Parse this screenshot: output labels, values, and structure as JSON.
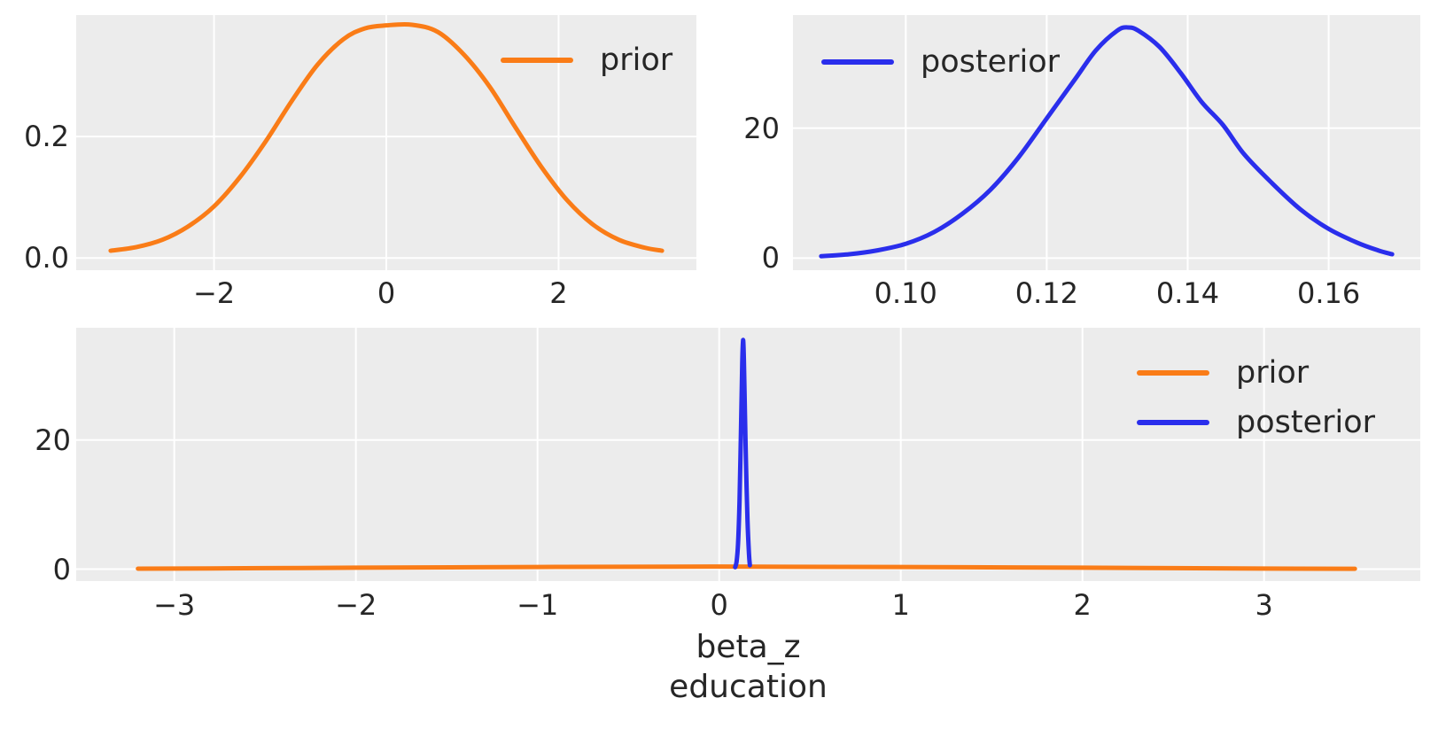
{
  "figure": {
    "background": "#ffffff",
    "plot_background": "#ececec",
    "grid_color": "#ffffff",
    "text_color": "#262626"
  },
  "colors": {
    "prior": "#fa7c17",
    "posterior": "#2a2eec"
  },
  "chart_data": [
    {
      "id": "prior-marginal",
      "type": "line",
      "position": "top-left",
      "xlim": [
        -3.6,
        3.6
      ],
      "ylim": [
        -0.02,
        0.4
      ],
      "grid": true,
      "xticks": [
        {
          "value": -2,
          "label": "−2"
        },
        {
          "value": 0,
          "label": "0"
        },
        {
          "value": 2,
          "label": "2"
        }
      ],
      "yticks": [
        {
          "value": 0.0,
          "label": "0.0"
        },
        {
          "value": 0.2,
          "label": "0.2"
        }
      ],
      "legend": {
        "position": "upper-right",
        "entries": [
          {
            "label": "prior",
            "color": "#fa7c17"
          }
        ]
      },
      "series": [
        {
          "name": "prior",
          "color": "#fa7c17",
          "points": [
            [
              -3.2,
              0.012
            ],
            [
              -2.9,
              0.018
            ],
            [
              -2.6,
              0.03
            ],
            [
              -2.3,
              0.052
            ],
            [
              -2.0,
              0.085
            ],
            [
              -1.7,
              0.133
            ],
            [
              -1.4,
              0.192
            ],
            [
              -1.1,
              0.258
            ],
            [
              -0.8,
              0.318
            ],
            [
              -0.5,
              0.36
            ],
            [
              -0.25,
              0.378
            ],
            [
              0.0,
              0.383
            ],
            [
              0.3,
              0.384
            ],
            [
              0.6,
              0.372
            ],
            [
              0.9,
              0.335
            ],
            [
              1.2,
              0.282
            ],
            [
              1.5,
              0.215
            ],
            [
              1.8,
              0.15
            ],
            [
              2.1,
              0.095
            ],
            [
              2.4,
              0.055
            ],
            [
              2.7,
              0.03
            ],
            [
              3.0,
              0.017
            ],
            [
              3.2,
              0.012
            ]
          ]
        }
      ]
    },
    {
      "id": "posterior-marginal",
      "type": "line",
      "position": "top-right",
      "xlim": [
        0.084,
        0.173
      ],
      "ylim": [
        -1.85,
        37.4
      ],
      "grid": true,
      "xticks": [
        {
          "value": 0.1,
          "label": "0.10"
        },
        {
          "value": 0.12,
          "label": "0.12"
        },
        {
          "value": 0.14,
          "label": "0.14"
        },
        {
          "value": 0.16,
          "label": "0.16"
        }
      ],
      "yticks": [
        {
          "value": 0,
          "label": "0"
        },
        {
          "value": 20,
          "label": "20"
        }
      ],
      "legend": {
        "position": "upper-left",
        "entries": [
          {
            "label": "posterior",
            "color": "#2a2eec"
          }
        ]
      },
      "series": [
        {
          "name": "posterior",
          "color": "#2a2eec",
          "points": [
            [
              0.088,
              0.3
            ],
            [
              0.092,
              0.6
            ],
            [
              0.096,
              1.2
            ],
            [
              0.1,
              2.2
            ],
            [
              0.104,
              4.0
            ],
            [
              0.108,
              6.8
            ],
            [
              0.112,
              10.5
            ],
            [
              0.116,
              15.5
            ],
            [
              0.12,
              21.5
            ],
            [
              0.124,
              27.5
            ],
            [
              0.127,
              32.0
            ],
            [
              0.13,
              35.0
            ],
            [
              0.1315,
              35.5
            ],
            [
              0.133,
              35.0
            ],
            [
              0.136,
              32.5
            ],
            [
              0.139,
              28.5
            ],
            [
              0.142,
              24.0
            ],
            [
              0.145,
              20.5
            ],
            [
              0.148,
              16.0
            ],
            [
              0.152,
              11.5
            ],
            [
              0.156,
              7.5
            ],
            [
              0.16,
              4.5
            ],
            [
              0.164,
              2.4
            ],
            [
              0.167,
              1.2
            ],
            [
              0.169,
              0.6
            ]
          ]
        }
      ]
    },
    {
      "id": "joint",
      "type": "line",
      "position": "bottom",
      "xlabel_lines": [
        "beta_z",
        "education"
      ],
      "xlim": [
        -3.54,
        3.86
      ],
      "ylim": [
        -1.85,
        37.4
      ],
      "grid": true,
      "xticks": [
        {
          "value": -3,
          "label": "−3"
        },
        {
          "value": -2,
          "label": "−2"
        },
        {
          "value": -1,
          "label": "−1"
        },
        {
          "value": 0,
          "label": "0"
        },
        {
          "value": 1,
          "label": "1"
        },
        {
          "value": 2,
          "label": "2"
        },
        {
          "value": 3,
          "label": "3"
        }
      ],
      "yticks": [
        {
          "value": 0,
          "label": "0"
        },
        {
          "value": 20,
          "label": "20"
        }
      ],
      "legend": {
        "position": "upper-right",
        "entries": [
          {
            "label": "prior",
            "color": "#fa7c17"
          },
          {
            "label": "posterior",
            "color": "#2a2eec"
          }
        ]
      },
      "series": [
        {
          "name": "prior",
          "color": "#fa7c17",
          "points": [
            [
              -3.2,
              0.07
            ],
            [
              -2.5,
              0.15
            ],
            [
              -2.0,
              0.22
            ],
            [
              -1.0,
              0.33
            ],
            [
              0.0,
              0.39
            ],
            [
              1.0,
              0.33
            ],
            [
              2.0,
              0.22
            ],
            [
              2.5,
              0.15
            ],
            [
              3.0,
              0.09
            ],
            [
              3.5,
              0.05
            ]
          ]
        },
        {
          "name": "posterior",
          "color": "#2a2eec",
          "points": [
            [
              0.088,
              0.3
            ],
            [
              0.096,
              1.2
            ],
            [
              0.104,
              4.0
            ],
            [
              0.112,
              10.5
            ],
            [
              0.12,
              21.5
            ],
            [
              0.127,
              32.0
            ],
            [
              0.1315,
              35.5
            ],
            [
              0.136,
              32.5
            ],
            [
              0.142,
              24.0
            ],
            [
              0.148,
              16.0
            ],
            [
              0.156,
              7.5
            ],
            [
              0.164,
              2.4
            ],
            [
              0.169,
              0.6
            ]
          ]
        }
      ]
    }
  ]
}
